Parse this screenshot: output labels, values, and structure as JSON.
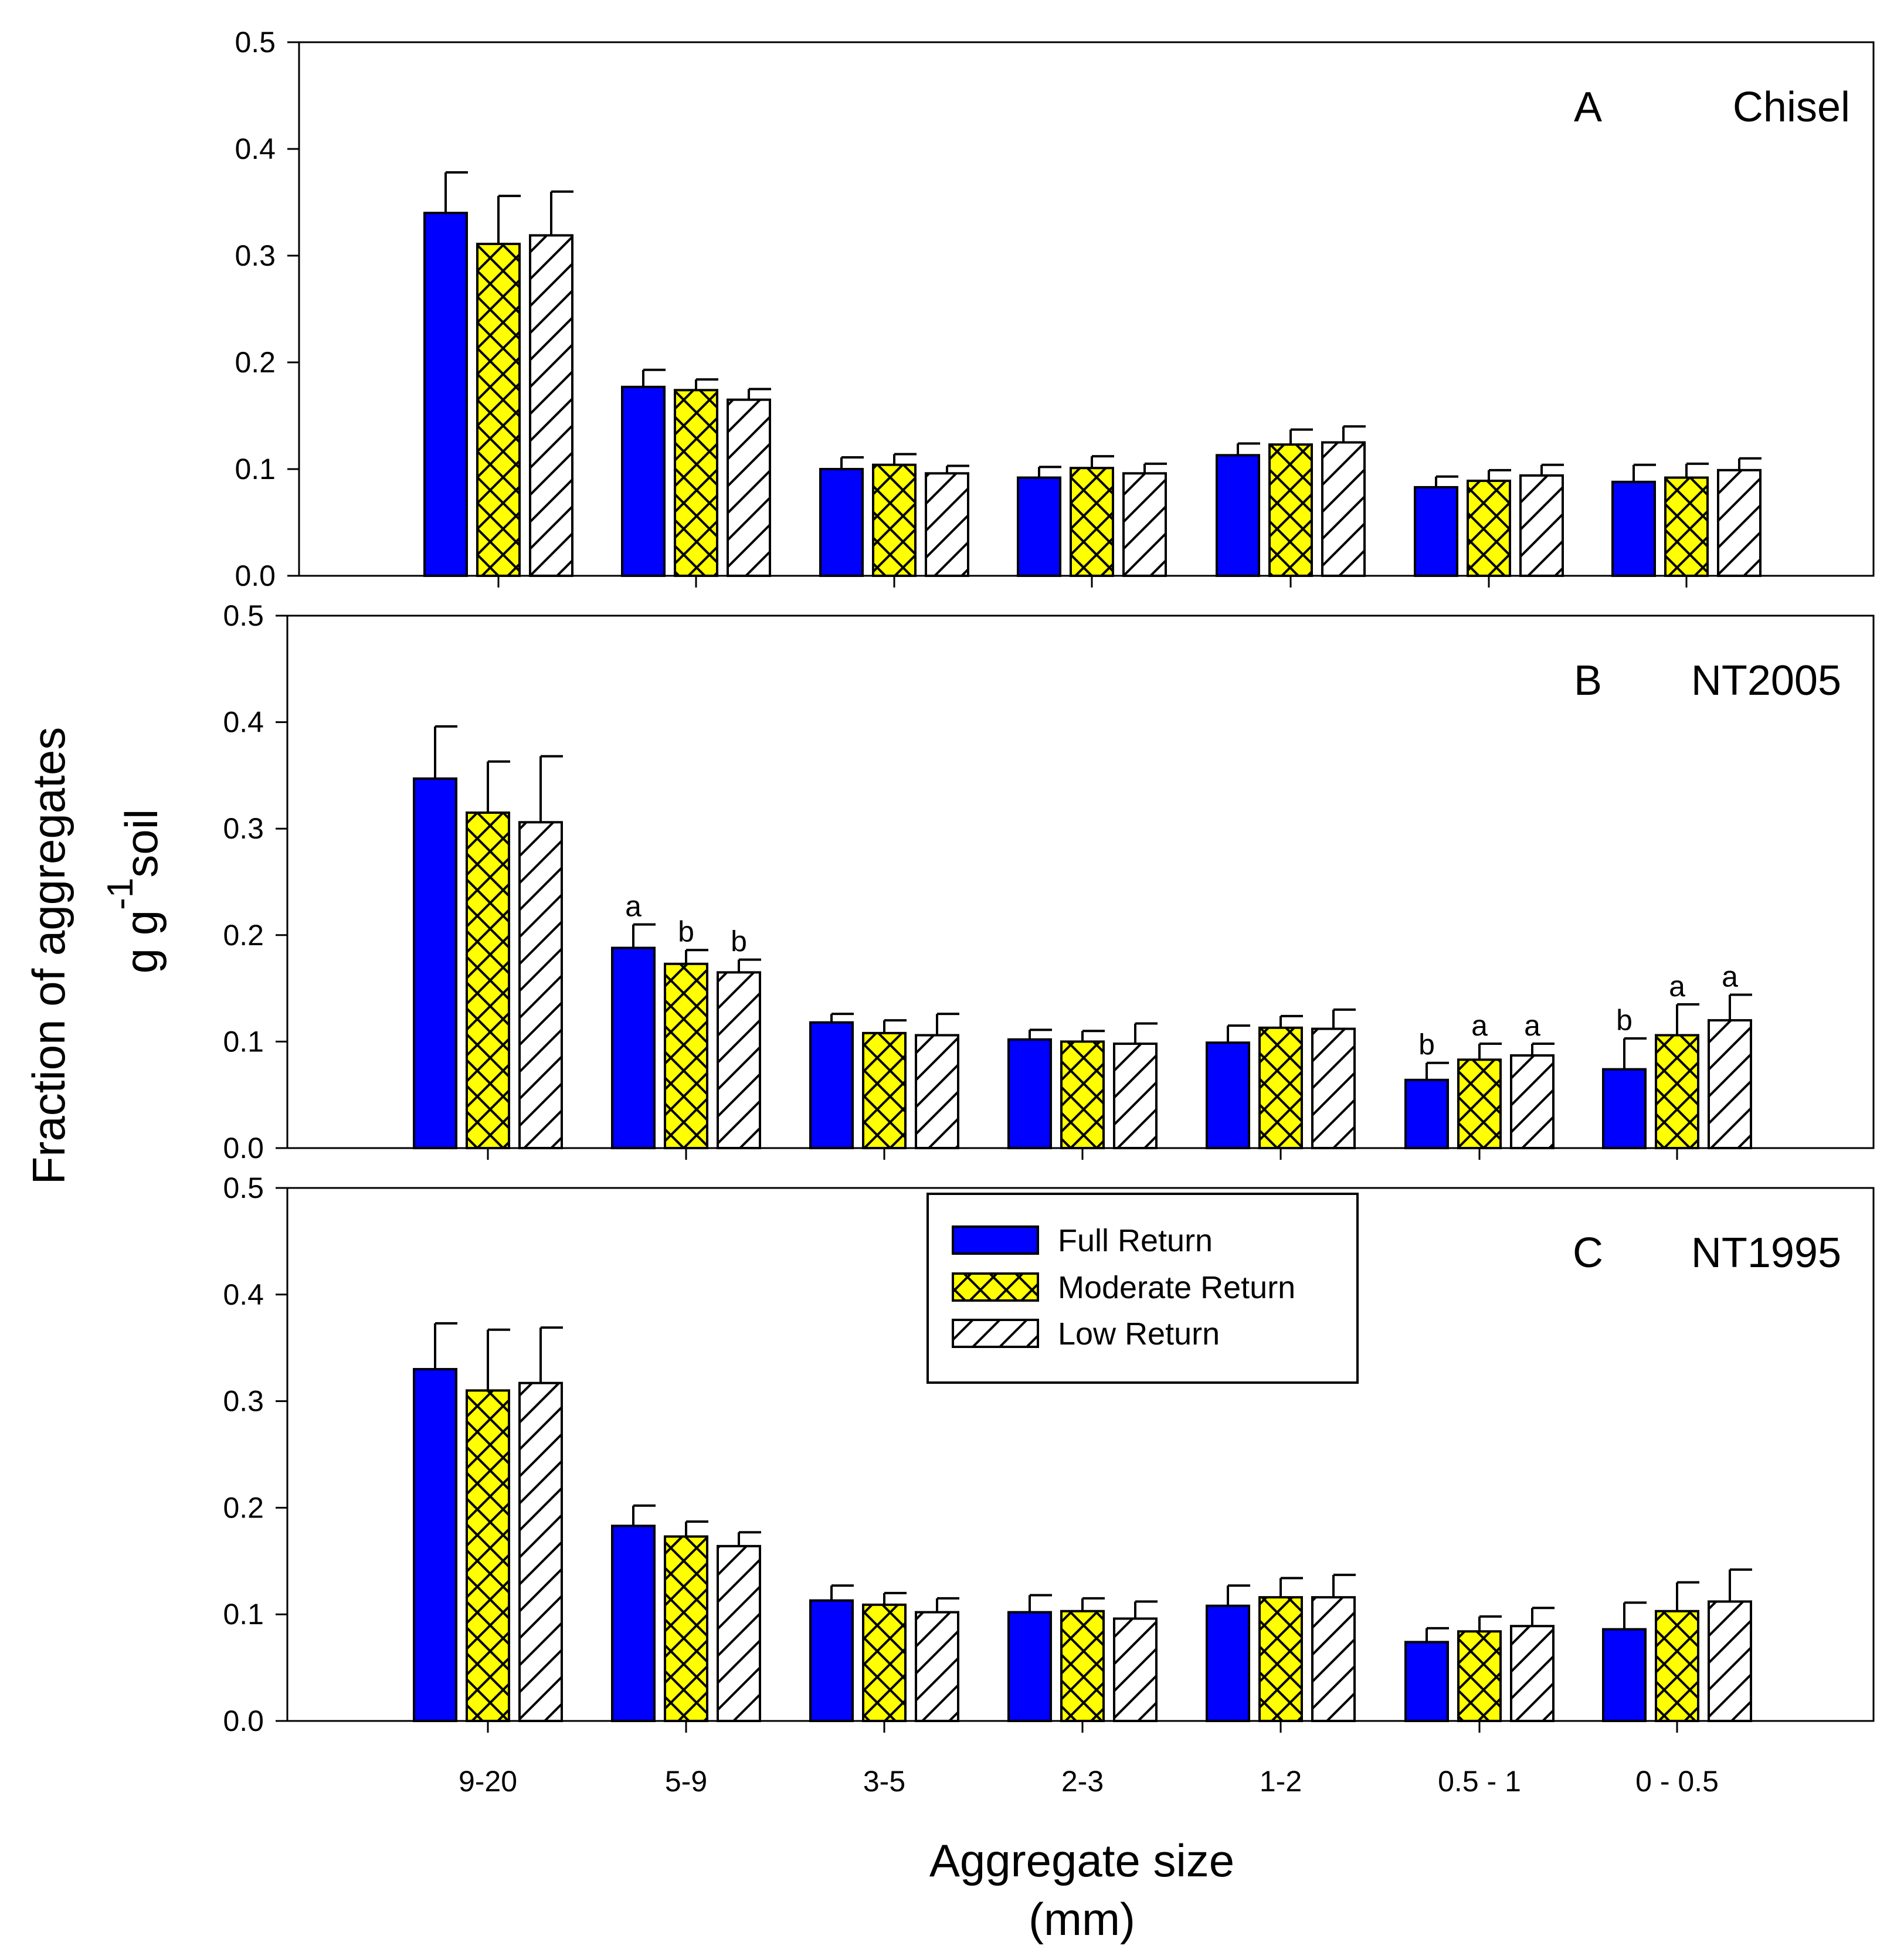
{
  "chart_data": {
    "type": "bar",
    "figure_ylabel_line1": "Fraction of aggregates",
    "figure_ylabel_line2_prefix": "g g",
    "figure_ylabel_line2_sup": "-1",
    "figure_ylabel_line2_suffix": "soil",
    "xlabel_line1": "Aggregate size",
    "xlabel_line2": "(mm)",
    "categories": [
      "9-20",
      "5-9",
      "3-5",
      "2-3",
      "1-2",
      "0.5 - 1",
      "0 - 0.5"
    ],
    "ylim": [
      0,
      0.5
    ],
    "yticks": [
      "0.0",
      "0.1",
      "0.2",
      "0.3",
      "0.4",
      "0.5"
    ],
    "legend": {
      "position": "top-center of panel C",
      "entries": [
        {
          "name": "Full Return",
          "pattern": "solid"
        },
        {
          "name": "Moderate Return",
          "pattern": "crosshatch"
        },
        {
          "name": "Low Return",
          "pattern": "diagonal"
        }
      ]
    },
    "colors": {
      "full": "#0000ff",
      "moderate": "#ffff00",
      "low": "#ffffff",
      "outline": "#000000"
    },
    "panels": [
      {
        "letter": "A",
        "title": "Chisel",
        "series": [
          {
            "name": "Full Return",
            "values": [
              0.34,
              0.177,
              0.1,
              0.092,
              0.113,
              0.083,
              0.088
            ],
            "errors": [
              0.038,
              0.016,
              0.011,
              0.01,
              0.011,
              0.01,
              0.016
            ]
          },
          {
            "name": "Moderate Return",
            "values": [
              0.311,
              0.174,
              0.104,
              0.101,
              0.123,
              0.089,
              0.092
            ],
            "errors": [
              0.045,
              0.01,
              0.01,
              0.011,
              0.014,
              0.01,
              0.013
            ]
          },
          {
            "name": "Low Return",
            "values": [
              0.319,
              0.165,
              0.096,
              0.096,
              0.125,
              0.094,
              0.099
            ],
            "errors": [
              0.041,
              0.01,
              0.007,
              0.009,
              0.015,
              0.01,
              0.011
            ]
          }
        ],
        "annotations": []
      },
      {
        "letter": "B",
        "title": "NT2005",
        "series": [
          {
            "name": "Full Return",
            "values": [
              0.347,
              0.188,
              0.118,
              0.102,
              0.099,
              0.064,
              0.074
            ],
            "errors": [
              0.049,
              0.022,
              0.008,
              0.009,
              0.016,
              0.016,
              0.029
            ]
          },
          {
            "name": "Moderate Return",
            "values": [
              0.315,
              0.173,
              0.108,
              0.1,
              0.113,
              0.083,
              0.106
            ],
            "errors": [
              0.048,
              0.013,
              0.012,
              0.01,
              0.011,
              0.015,
              0.029
            ]
          },
          {
            "name": "Low Return",
            "values": [
              0.306,
              0.165,
              0.106,
              0.098,
              0.112,
              0.087,
              0.12
            ],
            "errors": [
              0.062,
              0.012,
              0.02,
              0.019,
              0.018,
              0.011,
              0.024
            ]
          }
        ],
        "annotations": [
          {
            "category": 1,
            "series": 0,
            "text": "a"
          },
          {
            "category": 1,
            "series": 1,
            "text": "b"
          },
          {
            "category": 1,
            "series": 2,
            "text": "b"
          },
          {
            "category": 5,
            "series": 0,
            "text": "b"
          },
          {
            "category": 5,
            "series": 1,
            "text": "a"
          },
          {
            "category": 5,
            "series": 2,
            "text": "a"
          },
          {
            "category": 6,
            "series": 0,
            "text": "b"
          },
          {
            "category": 6,
            "series": 1,
            "text": "a"
          },
          {
            "category": 6,
            "series": 2,
            "text": "a"
          }
        ]
      },
      {
        "letter": "C",
        "title": "NT1995",
        "series": [
          {
            "name": "Full Return",
            "values": [
              0.33,
              0.183,
              0.113,
              0.102,
              0.108,
              0.074,
              0.086
            ],
            "errors": [
              0.043,
              0.019,
              0.014,
              0.016,
              0.019,
              0.013,
              0.025
            ]
          },
          {
            "name": "Moderate Return",
            "values": [
              0.31,
              0.173,
              0.109,
              0.103,
              0.116,
              0.084,
              0.103
            ],
            "errors": [
              0.057,
              0.014,
              0.011,
              0.012,
              0.018,
              0.014,
              0.027
            ]
          },
          {
            "name": "Low Return",
            "values": [
              0.317,
              0.164,
              0.102,
              0.096,
              0.116,
              0.089,
              0.112
            ],
            "errors": [
              0.052,
              0.013,
              0.013,
              0.016,
              0.021,
              0.017,
              0.03
            ]
          }
        ],
        "annotations": []
      }
    ]
  }
}
